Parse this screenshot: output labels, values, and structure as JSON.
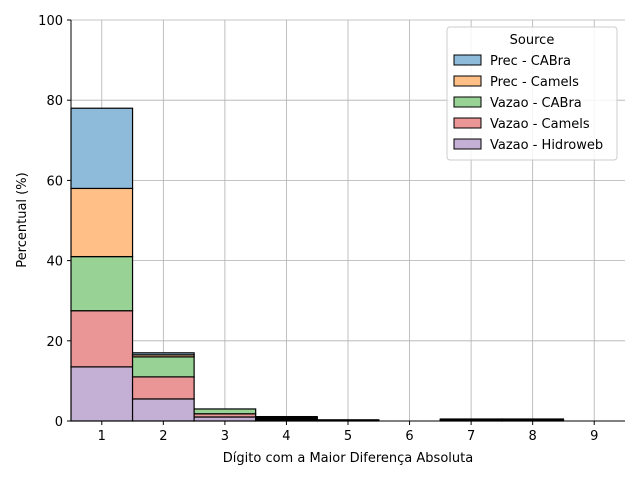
{
  "chart_data": {
    "type": "bar",
    "stacked": true,
    "categories": [
      "1",
      "2",
      "3",
      "4",
      "5",
      "6",
      "7",
      "8",
      "9"
    ],
    "xlabel": "Dígito com a Maior Diferença Absoluta",
    "ylabel": "Percentual (%)",
    "ylim": [
      0,
      100
    ],
    "yticks": [
      "0",
      "20",
      "40",
      "60",
      "80",
      "100"
    ],
    "grid": true,
    "legend": {
      "title": "Source",
      "position": "top-right"
    },
    "series": [
      {
        "name": "Vazao - Hidroweb",
        "color": "#c5b0d5",
        "values": [
          13.5,
          5.5,
          1.0,
          0.2,
          0.1,
          0.0,
          0.1,
          0.1,
          0.0
        ]
      },
      {
        "name": "Vazao - Camels",
        "color": "#ea9596",
        "values": [
          14.0,
          5.5,
          0.8,
          0.2,
          0.1,
          0.0,
          0.1,
          0.1,
          0.0
        ]
      },
      {
        "name": "Vazao - CABra",
        "color": "#98d294",
        "values": [
          13.5,
          5.0,
          1.2,
          0.3,
          0.1,
          0.0,
          0.1,
          0.1,
          0.0
        ]
      },
      {
        "name": "Prec - Camels",
        "color": "#ffbf86",
        "values": [
          17.0,
          0.5,
          0.0,
          0.2,
          0.0,
          0.0,
          0.1,
          0.1,
          0.0
        ]
      },
      {
        "name": "Prec - CABra",
        "color": "#8fbbda",
        "values": [
          20.0,
          0.5,
          0.0,
          0.2,
          0.0,
          0.0,
          0.1,
          0.1,
          0.0
        ]
      }
    ],
    "legend_order": [
      "Prec - CABra",
      "Prec - Camels",
      "Vazao - CABra",
      "Vazao - Camels",
      "Vazao - Hidroweb"
    ]
  }
}
